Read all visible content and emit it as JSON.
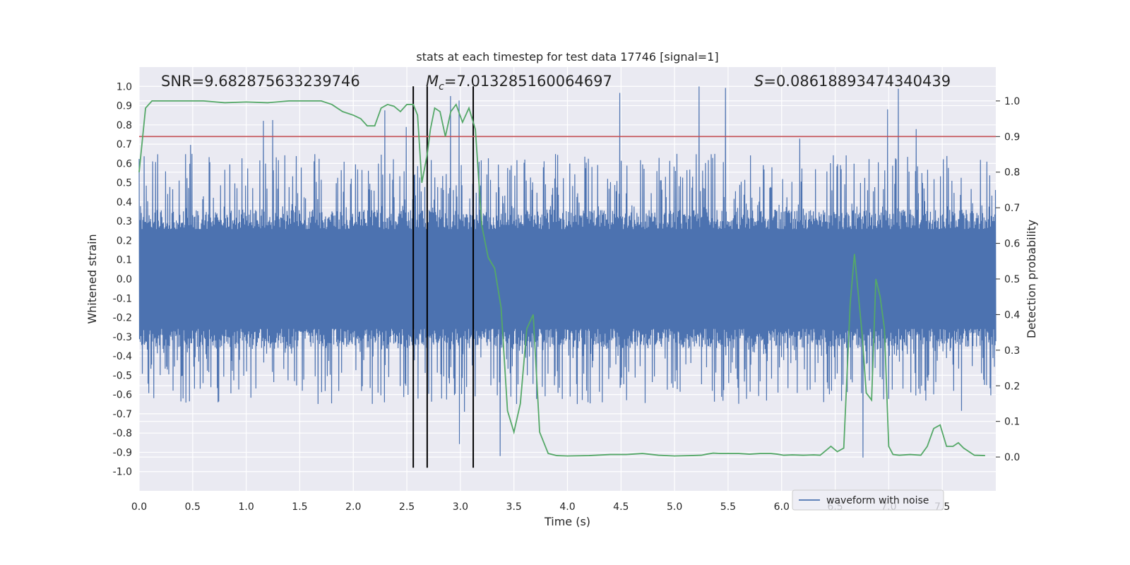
{
  "chart_data": {
    "type": "line",
    "title": "stats at each timestep for test data 17746 [signal=1]",
    "xlabel": "Time (s)",
    "ylabel_left": "Whitened strain",
    "ylabel_right": "Detection probability",
    "xlim": [
      0,
      8
    ],
    "ylim_left": [
      -1.1,
      1.1
    ],
    "ylim_right": [
      -0.095,
      1.095
    ],
    "x_ticks": [
      0.0,
      0.5,
      1.0,
      1.5,
      2.0,
      2.5,
      3.0,
      3.5,
      4.0,
      4.5,
      5.0,
      5.5,
      6.0,
      6.5,
      7.0,
      7.5
    ],
    "x_tick_labels": [
      "0.0",
      "0.5",
      "1.0",
      "1.5",
      "2.0",
      "2.5",
      "3.0",
      "3.5",
      "4.0",
      "4.5",
      "5.0",
      "5.5",
      "6.0",
      "6.5",
      "7.0",
      "7.5"
    ],
    "y_left_ticks": [
      1.0,
      0.9,
      0.8,
      0.7,
      0.6,
      0.5,
      0.4,
      0.3,
      0.2,
      0.1,
      0.0,
      -0.1,
      -0.2,
      -0.3,
      -0.4,
      -0.5,
      -0.6,
      -0.7,
      -0.8,
      -0.9,
      -1.0
    ],
    "y_left_tick_labels": [
      "1.0",
      "0.9",
      "0.8",
      "0.7",
      "0.6",
      "0.5",
      "0.4",
      "0.3",
      "0.2",
      "0.1",
      "0.0",
      "-0.1",
      "-0.2",
      "-0.3",
      "-0.4",
      "-0.5",
      "-0.6",
      "-0.7",
      "-0.8",
      "-0.9",
      "-1.0"
    ],
    "y_right_ticks": [
      1.0,
      0.9,
      0.8,
      0.7,
      0.6,
      0.5,
      0.4,
      0.3,
      0.2,
      0.1,
      0.0
    ],
    "y_right_tick_labels": [
      "1.0",
      "0.9",
      "0.8",
      "0.7",
      "0.6",
      "0.5",
      "0.4",
      "0.3",
      "0.2",
      "0.1",
      "0.0"
    ],
    "annotations": {
      "snr": "SNR=9.682875633239746",
      "mc_symbol": "M",
      "mc_sub": "c",
      "mc_value": "=7.013285160064697",
      "s_symbol": "S",
      "s_value": "=0.08618893474340439"
    },
    "threshold": {
      "axis": "right",
      "value": 0.9,
      "color": "#c44e52"
    },
    "vertical_lines": [
      {
        "x": 2.56,
        "ymin": -0.98,
        "ymax": 1.0
      },
      {
        "x": 2.69,
        "ymin": -0.98,
        "ymax": 1.0
      },
      {
        "x": 3.12,
        "ymin": -0.98,
        "ymax": 1.0
      }
    ],
    "series": [
      {
        "name": "waveform with noise",
        "axis": "left",
        "color": "#4c72b0",
        "kind": "dense-noise",
        "t_range": [
          0,
          8
        ],
        "core_amplitude": 0.36,
        "typical_peak": 0.55,
        "max_abs": 1.0
      },
      {
        "name": "Detection probability",
        "axis": "right",
        "color": "#55a868",
        "x": [
          0.0,
          0.06,
          0.12,
          0.2,
          0.4,
          0.6,
          0.8,
          1.0,
          1.2,
          1.4,
          1.6,
          1.7,
          1.8,
          1.9,
          2.0,
          2.07,
          2.13,
          2.2,
          2.26,
          2.32,
          2.38,
          2.44,
          2.5,
          2.56,
          2.6,
          2.64,
          2.69,
          2.72,
          2.76,
          2.81,
          2.86,
          2.91,
          2.96,
          3.02,
          3.08,
          3.14,
          3.2,
          3.26,
          3.32,
          3.38,
          3.44,
          3.5,
          3.56,
          3.62,
          3.68,
          3.74,
          3.82,
          3.9,
          4.0,
          4.2,
          4.4,
          4.55,
          4.7,
          4.85,
          5.0,
          5.15,
          5.25,
          5.3,
          5.36,
          5.42,
          5.5,
          5.6,
          5.7,
          5.8,
          5.9,
          5.96,
          6.02,
          6.1,
          6.2,
          6.3,
          6.36,
          6.42,
          6.46,
          6.52,
          6.58,
          6.64,
          6.68,
          6.75,
          6.79,
          6.84,
          6.88,
          6.92,
          6.96,
          7.0,
          7.04,
          7.1,
          7.2,
          7.3,
          7.36,
          7.42,
          7.48,
          7.54,
          7.6,
          7.65,
          7.7,
          7.8,
          7.9
        ],
        "y": [
          0.8,
          0.98,
          1.0,
          1.0,
          1.0,
          1.0,
          0.995,
          0.997,
          0.995,
          1.0,
          1.0,
          1.0,
          0.99,
          0.97,
          0.96,
          0.95,
          0.93,
          0.93,
          0.98,
          0.99,
          0.985,
          0.97,
          0.99,
          0.99,
          0.96,
          0.77,
          0.85,
          0.92,
          0.98,
          0.97,
          0.9,
          0.97,
          0.99,
          0.94,
          0.98,
          0.92,
          0.65,
          0.56,
          0.53,
          0.42,
          0.13,
          0.07,
          0.15,
          0.36,
          0.4,
          0.07,
          0.01,
          0.004,
          0.003,
          0.004,
          0.007,
          0.007,
          0.01,
          0.005,
          0.003,
          0.004,
          0.005,
          0.008,
          0.011,
          0.01,
          0.01,
          0.01,
          0.008,
          0.01,
          0.01,
          0.008,
          0.005,
          0.006,
          0.005,
          0.006,
          0.005,
          0.02,
          0.03,
          0.015,
          0.025,
          0.43,
          0.57,
          0.35,
          0.18,
          0.16,
          0.5,
          0.45,
          0.36,
          0.03,
          0.007,
          0.005,
          0.007,
          0.005,
          0.03,
          0.08,
          0.09,
          0.03,
          0.03,
          0.04,
          0.025,
          0.005,
          0.004
        ]
      }
    ],
    "legend": {
      "position": "lower-right",
      "entries": [
        "waveform with noise"
      ]
    }
  }
}
